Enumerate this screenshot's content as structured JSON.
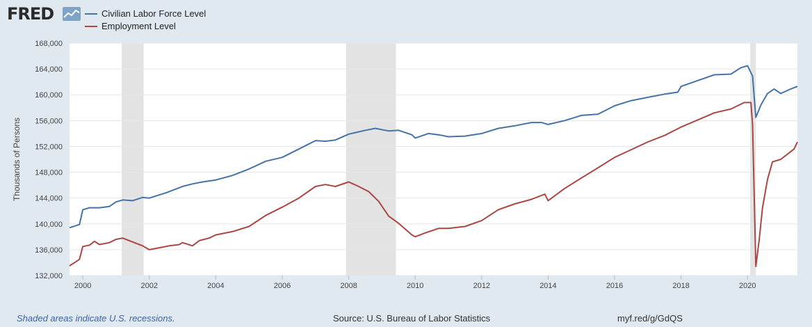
{
  "header": {
    "logo_text": "FRED",
    "logo_icon": "fred-line-graph-icon"
  },
  "colors": {
    "series1": "#4572a7",
    "series2": "#aa4643",
    "recession": "#e3e3e3",
    "grid": "#e6e6e6",
    "plot_bg": "#ffffff",
    "page_bg": "#e1e9f0",
    "axis_text": "#444444"
  },
  "footer": {
    "note": "Shaded areas indicate U.S. recessions.",
    "source": "Source: U.S. Bureau of Labor Statistics",
    "url": "myf.red/g/GdQS"
  },
  "chart_data": {
    "type": "line",
    "title": "",
    "xlabel": "",
    "ylabel": "Thousands of Persons",
    "xlim": [
      1999.6,
      2021.5
    ],
    "ylim": [
      132000,
      168000
    ],
    "yticks": [
      132000,
      136000,
      140000,
      144000,
      148000,
      152000,
      156000,
      160000,
      164000,
      168000
    ],
    "ytick_labels": [
      "132,000",
      "136,000",
      "140,000",
      "144,000",
      "148,000",
      "152,000",
      "156,000",
      "160,000",
      "164,000",
      "168,000"
    ],
    "xticks": [
      2000,
      2002,
      2004,
      2006,
      2008,
      2010,
      2012,
      2014,
      2016,
      2018,
      2020
    ],
    "xtick_labels": [
      "2000",
      "2002",
      "2004",
      "2006",
      "2008",
      "2010",
      "2012",
      "2014",
      "2016",
      "2018",
      "2020"
    ],
    "grid": true,
    "legend": "top-left",
    "recessions": [
      [
        2001.17,
        2001.83
      ],
      [
        2007.92,
        2009.42
      ],
      [
        2020.08,
        2020.25
      ]
    ],
    "series": [
      {
        "name": "Civilian Labor Force Level",
        "points": [
          [
            1999.6,
            139400
          ],
          [
            1999.9,
            139900
          ],
          [
            2000.0,
            142200
          ],
          [
            2000.2,
            142500
          ],
          [
            2000.5,
            142500
          ],
          [
            2000.8,
            142700
          ],
          [
            2001.0,
            143400
          ],
          [
            2001.2,
            143700
          ],
          [
            2001.5,
            143600
          ],
          [
            2001.8,
            144100
          ],
          [
            2002.0,
            144000
          ],
          [
            2002.5,
            144800
          ],
          [
            2003.0,
            145800
          ],
          [
            2003.3,
            146200
          ],
          [
            2003.6,
            146500
          ],
          [
            2004.0,
            146800
          ],
          [
            2004.5,
            147500
          ],
          [
            2005.0,
            148500
          ],
          [
            2005.5,
            149700
          ],
          [
            2006.0,
            150300
          ],
          [
            2006.5,
            151600
          ],
          [
            2007.0,
            152900
          ],
          [
            2007.3,
            152800
          ],
          [
            2007.6,
            153000
          ],
          [
            2008.0,
            153900
          ],
          [
            2008.5,
            154500
          ],
          [
            2008.8,
            154800
          ],
          [
            2009.2,
            154400
          ],
          [
            2009.5,
            154500
          ],
          [
            2009.9,
            153800
          ],
          [
            2010.0,
            153300
          ],
          [
            2010.4,
            154000
          ],
          [
            2010.7,
            153800
          ],
          [
            2011.0,
            153500
          ],
          [
            2011.5,
            153600
          ],
          [
            2012.0,
            154000
          ],
          [
            2012.5,
            154800
          ],
          [
            2013.0,
            155200
          ],
          [
            2013.5,
            155700
          ],
          [
            2013.8,
            155700
          ],
          [
            2014.0,
            155400
          ],
          [
            2014.5,
            156000
          ],
          [
            2015.0,
            156800
          ],
          [
            2015.5,
            157000
          ],
          [
            2016.0,
            158300
          ],
          [
            2016.5,
            159100
          ],
          [
            2017.0,
            159600
          ],
          [
            2017.5,
            160100
          ],
          [
            2017.9,
            160400
          ],
          [
            2018.0,
            161300
          ],
          [
            2018.5,
            162200
          ],
          [
            2019.0,
            163100
          ],
          [
            2019.5,
            163200
          ],
          [
            2019.8,
            164200
          ],
          [
            2020.0,
            164500
          ],
          [
            2020.15,
            162900
          ],
          [
            2020.25,
            156500
          ],
          [
            2020.4,
            158400
          ],
          [
            2020.6,
            160200
          ],
          [
            2020.8,
            160900
          ],
          [
            2021.0,
            160200
          ],
          [
            2021.3,
            160900
          ],
          [
            2021.5,
            161300
          ]
        ]
      },
      {
        "name": "Employment Level",
        "points": [
          [
            1999.6,
            133500
          ],
          [
            1999.9,
            134500
          ],
          [
            2000.0,
            136500
          ],
          [
            2000.2,
            136700
          ],
          [
            2000.35,
            137300
          ],
          [
            2000.5,
            136800
          ],
          [
            2000.8,
            137100
          ],
          [
            2001.0,
            137600
          ],
          [
            2001.2,
            137800
          ],
          [
            2001.5,
            137200
          ],
          [
            2001.8,
            136600
          ],
          [
            2002.0,
            136000
          ],
          [
            2002.3,
            136300
          ],
          [
            2002.6,
            136600
          ],
          [
            2002.9,
            136800
          ],
          [
            2003.0,
            137100
          ],
          [
            2003.3,
            136600
          ],
          [
            2003.5,
            137400
          ],
          [
            2003.8,
            137800
          ],
          [
            2004.0,
            138300
          ],
          [
            2004.5,
            138800
          ],
          [
            2005.0,
            139600
          ],
          [
            2005.5,
            141300
          ],
          [
            2006.0,
            142600
          ],
          [
            2006.5,
            144000
          ],
          [
            2007.0,
            145800
          ],
          [
            2007.3,
            146100
          ],
          [
            2007.6,
            145800
          ],
          [
            2008.0,
            146500
          ],
          [
            2008.3,
            145800
          ],
          [
            2008.6,
            145000
          ],
          [
            2008.9,
            143500
          ],
          [
            2009.2,
            141200
          ],
          [
            2009.5,
            140100
          ],
          [
            2009.9,
            138300
          ],
          [
            2010.0,
            138000
          ],
          [
            2010.3,
            138600
          ],
          [
            2010.7,
            139300
          ],
          [
            2011.0,
            139300
          ],
          [
            2011.5,
            139600
          ],
          [
            2012.0,
            140500
          ],
          [
            2012.5,
            142200
          ],
          [
            2013.0,
            143100
          ],
          [
            2013.5,
            143800
          ],
          [
            2013.9,
            144600
          ],
          [
            2014.0,
            143600
          ],
          [
            2014.5,
            145500
          ],
          [
            2015.0,
            147100
          ],
          [
            2015.5,
            148700
          ],
          [
            2016.0,
            150300
          ],
          [
            2016.5,
            151500
          ],
          [
            2017.0,
            152700
          ],
          [
            2017.5,
            153700
          ],
          [
            2018.0,
            155000
          ],
          [
            2018.5,
            156100
          ],
          [
            2019.0,
            157200
          ],
          [
            2019.5,
            157800
          ],
          [
            2019.9,
            158800
          ],
          [
            2020.1,
            158800
          ],
          [
            2020.15,
            155400
          ],
          [
            2020.25,
            133400
          ],
          [
            2020.35,
            137500
          ],
          [
            2020.45,
            142500
          ],
          [
            2020.6,
            146900
          ],
          [
            2020.75,
            149600
          ],
          [
            2021.0,
            150000
          ],
          [
            2021.2,
            150800
          ],
          [
            2021.4,
            151600
          ],
          [
            2021.5,
            152700
          ]
        ]
      }
    ]
  }
}
